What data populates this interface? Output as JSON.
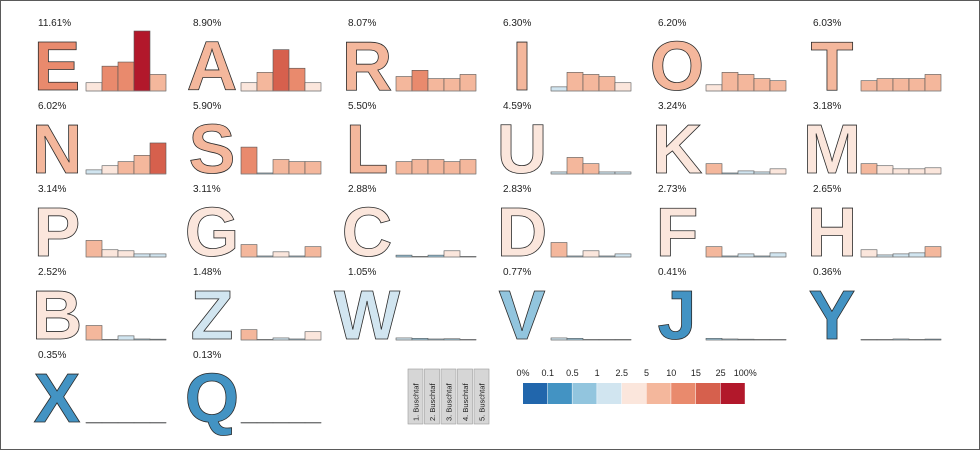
{
  "chart_data": {
    "type": "bar",
    "scale_labels": [
      "0%",
      "0.1",
      "0.5",
      "1",
      "2.5",
      "5",
      "10",
      "15",
      "25",
      "100%"
    ],
    "scale_colors": [
      "#2166ac",
      "#4393c3",
      "#92c5de",
      "#d1e5f0",
      "#fbe6dc",
      "#f4b79c",
      "#e98a6d",
      "#d6604d",
      "#b2182b"
    ],
    "position_labels": [
      "1. Buschtaf",
      "2. Buschtaf",
      "3. Buschtaf",
      "4. Buschtaf",
      "5. Buschtaf"
    ],
    "letters": [
      {
        "letter": "E",
        "pct": "11.61%",
        "value": 11.61,
        "bars": [
          4,
          12,
          14,
          29,
          8
        ]
      },
      {
        "letter": "A",
        "pct": "8.90%",
        "value": 8.9,
        "bars": [
          4,
          9,
          20,
          11,
          4
        ]
      },
      {
        "letter": "R",
        "pct": "8.07%",
        "value": 8.07,
        "bars": [
          7,
          10,
          6,
          6,
          8
        ]
      },
      {
        "letter": "I",
        "pct": "6.30%",
        "value": 6.3,
        "bars": [
          2,
          9,
          8,
          7,
          4
        ]
      },
      {
        "letter": "O",
        "pct": "6.20%",
        "value": 6.2,
        "bars": [
          3,
          9,
          8,
          6,
          5
        ]
      },
      {
        "letter": "T",
        "pct": "6.03%",
        "value": 6.03,
        "bars": [
          5,
          6,
          6,
          6,
          8
        ]
      },
      {
        "letter": "N",
        "pct": "6.02%",
        "value": 6.02,
        "bars": [
          2,
          4,
          6,
          9,
          15
        ]
      },
      {
        "letter": "S",
        "pct": "5.90%",
        "value": 5.9,
        "bars": [
          13,
          0.5,
          7,
          6,
          6
        ]
      },
      {
        "letter": "L",
        "pct": "5.50%",
        "value": 5.5,
        "bars": [
          6,
          7,
          7,
          6,
          7
        ]
      },
      {
        "letter": "U",
        "pct": "4.59%",
        "value": 4.59,
        "bars": [
          1,
          8,
          5,
          1,
          1
        ]
      },
      {
        "letter": "K",
        "pct": "3.24%",
        "value": 3.24,
        "bars": [
          5,
          0.5,
          1.5,
          1,
          2.5
        ]
      },
      {
        "letter": "M",
        "pct": "3.18%",
        "value": 3.18,
        "bars": [
          5,
          4,
          2.5,
          2.5,
          3
        ]
      },
      {
        "letter": "P",
        "pct": "3.14%",
        "value": 3.14,
        "bars": [
          8,
          3.5,
          3,
          1.5,
          1.5
        ]
      },
      {
        "letter": "G",
        "pct": "3.11%",
        "value": 3.11,
        "bars": [
          6,
          0.5,
          2.5,
          0.5,
          5
        ]
      },
      {
        "letter": "C",
        "pct": "2.88%",
        "value": 2.88,
        "bars": [
          0.9,
          0.3,
          0.9,
          3,
          0.05
        ]
      },
      {
        "letter": "D",
        "pct": "2.83%",
        "value": 2.83,
        "bars": [
          7,
          0.5,
          3,
          0.5,
          1.5
        ]
      },
      {
        "letter": "F",
        "pct": "2.73%",
        "value": 2.73,
        "bars": [
          5,
          0.5,
          1.5,
          0.5,
          2
        ]
      },
      {
        "letter": "H",
        "pct": "2.65%",
        "value": 2.65,
        "bars": [
          3.5,
          1,
          1.5,
          2,
          5
        ]
      },
      {
        "letter": "B",
        "pct": "2.52%",
        "value": 2.52,
        "bars": [
          7,
          0.02,
          2,
          0.5,
          0.4
        ]
      },
      {
        "letter": "Z",
        "pct": "1.48%",
        "value": 1.48,
        "bars": [
          5,
          0.03,
          1,
          0.5,
          4
        ]
      },
      {
        "letter": "W",
        "pct": "1.05%",
        "value": 1.05,
        "bars": [
          1,
          0.8,
          0.5,
          0.6,
          0.2
        ]
      },
      {
        "letter": "V",
        "pct": "0.77%",
        "value": 0.77,
        "bars": [
          1,
          0.8,
          0.05,
          0.2,
          0.3
        ]
      },
      {
        "letter": "J",
        "pct": "0.41%",
        "value": 0.41,
        "bars": [
          0.8,
          0.5,
          0.4,
          0.3,
          0.15
        ]
      },
      {
        "letter": "Y",
        "pct": "0.36%",
        "value": 0.36,
        "bars": [
          0.04,
          0.25,
          0.5,
          0.08,
          0.45
        ]
      },
      {
        "letter": "X",
        "pct": "0.35%",
        "value": 0.35,
        "bars": [
          0.05,
          0.12,
          0.16,
          0.01,
          0.12
        ]
      },
      {
        "letter": "Q",
        "pct": "0.13%",
        "value": 0.13,
        "bars": [
          0.07,
          0.01,
          0.005,
          0.04,
          0.001
        ]
      }
    ]
  }
}
